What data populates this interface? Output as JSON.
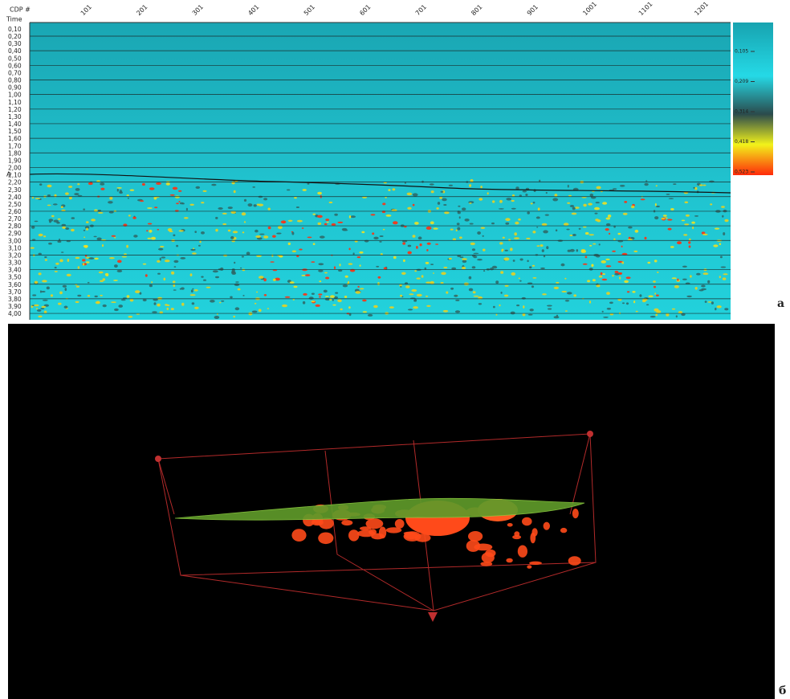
{
  "panel_a": {
    "label": "а",
    "x_axis_title": "CDP #",
    "y_axis_title": "Time",
    "horizon_label": "A",
    "cdp_ticks": [
      "101",
      "201",
      "301",
      "401",
      "501",
      "601",
      "701",
      "801",
      "901",
      "1001",
      "1101",
      "1201"
    ],
    "time_ticks": [
      "0,10",
      "0,20",
      "0,30",
      "0,40",
      "0,50",
      "0,60",
      "0,70",
      "0,80",
      "0,90",
      "1,00",
      "1,10",
      "1,20",
      "1,30",
      "1,40",
      "1,50",
      "1,60",
      "1,70",
      "1,80",
      "1,90",
      "2,00",
      "2,10",
      "2,20",
      "2,30",
      "2,40",
      "2,50",
      "2,60",
      "2,70",
      "2,80",
      "2,90",
      "3,00",
      "3,10",
      "3,20",
      "3,30",
      "3,40",
      "3,50",
      "3,60",
      "3,70",
      "3,80",
      "3,90",
      "4,00"
    ],
    "colorbar_ticks": [
      "0,105",
      "0,209",
      "0,314",
      "0,418",
      "0,523"
    ]
  },
  "panel_b": {
    "label": "б"
  }
}
